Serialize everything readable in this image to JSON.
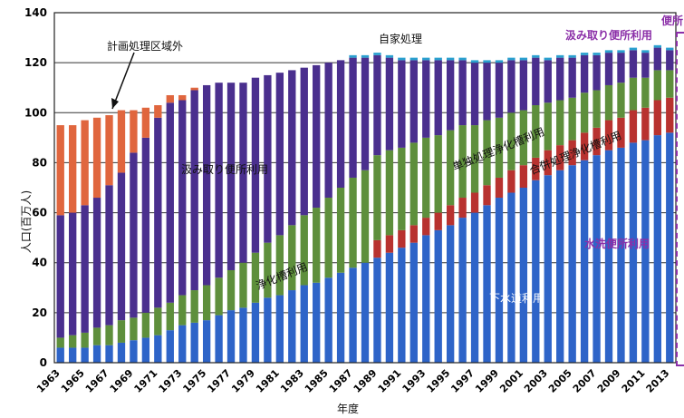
{
  "chart_data": {
    "type": "bar",
    "stacked": true,
    "title": "",
    "xlabel": "年度",
    "ylabel": "人口(百万人)",
    "ylim": [
      0,
      140
    ],
    "yticks": [
      0,
      20,
      40,
      60,
      80,
      100,
      120,
      140
    ],
    "grid": true,
    "categories": [
      "1963",
      "1964",
      "1965",
      "1966",
      "1967",
      "1968",
      "1969",
      "1970",
      "1971",
      "1972",
      "1973",
      "1974",
      "1975",
      "1976",
      "1977",
      "1978",
      "1979",
      "1980",
      "1981",
      "1982",
      "1983",
      "1984",
      "1985",
      "1986",
      "1987",
      "1988",
      "1989",
      "1990",
      "1991",
      "1992",
      "1993",
      "1994",
      "1995",
      "1996",
      "1997",
      "1998",
      "1999",
      "2000",
      "2001",
      "2002",
      "2003",
      "2004",
      "2005",
      "2006",
      "2007",
      "2008",
      "2009",
      "2010",
      "2011",
      "2012",
      "2013"
    ],
    "tick_labels": [
      "1963",
      "1965",
      "1967",
      "1969",
      "1971",
      "1973",
      "1975",
      "1977",
      "1979",
      "1981",
      "1983",
      "1985",
      "1987",
      "1989",
      "1991",
      "1993",
      "1995",
      "1997",
      "1999",
      "2001",
      "2003",
      "2005",
      "2007",
      "2009",
      "2011",
      "2013"
    ],
    "colors": {
      "sewer": "#2e64c8",
      "combined": "#b8322f",
      "single": "#5e8f3c",
      "collection": "#4a2f8e",
      "unplanned": "#e0663e",
      "self": "#2aa0cf"
    },
    "series": [
      {
        "name": "下水道利用",
        "key": "sewer",
        "values": [
          6,
          6,
          6,
          7,
          7,
          8,
          9,
          10,
          11,
          13,
          15,
          16,
          17,
          19,
          21,
          22,
          24,
          26,
          27,
          29,
          31,
          32,
          34,
          36,
          38,
          40,
          42,
          44,
          46,
          48,
          51,
          53,
          55,
          58,
          60,
          63,
          66,
          68,
          70,
          73,
          75,
          77,
          79,
          81,
          83,
          85,
          86,
          88,
          89,
          91,
          92
        ]
      },
      {
        "name": "合併処理浄化槽利用",
        "key": "combined",
        "values": [
          0,
          0,
          0,
          0,
          0,
          0,
          0,
          0,
          0,
          0,
          0,
          0,
          0,
          0,
          0,
          0,
          0,
          0,
          0,
          0,
          0,
          0,
          0,
          0,
          0,
          0,
          7,
          7,
          7,
          7,
          7,
          7,
          8,
          8,
          8,
          8,
          8,
          9,
          9,
          9,
          10,
          10,
          10,
          11,
          11,
          12,
          12,
          13,
          13,
          14,
          14
        ]
      },
      {
        "name": "単独処理浄化槽利用",
        "key": "single",
        "values": [
          4,
          5,
          6,
          7,
          8,
          9,
          9,
          10,
          11,
          11,
          12,
          13,
          14,
          15,
          16,
          18,
          20,
          22,
          24,
          26,
          28,
          30,
          32,
          34,
          36,
          37,
          34,
          34,
          33,
          33,
          32,
          31,
          30,
          29,
          27,
          26,
          24,
          23,
          22,
          21,
          19,
          18,
          17,
          16,
          15,
          14,
          14,
          13,
          12,
          12,
          11
        ]
      },
      {
        "name": "汲み取り便所利用",
        "key": "collection",
        "values": [
          49,
          49,
          51,
          52,
          56,
          59,
          66,
          70,
          76,
          80,
          78,
          80,
          80,
          78,
          75,
          72,
          70,
          67,
          65,
          62,
          59,
          57,
          54,
          51,
          48,
          45,
          40,
          37,
          35,
          33,
          31,
          30,
          28,
          26,
          25,
          23,
          22,
          21,
          20,
          19,
          17,
          17,
          16,
          15,
          14,
          13,
          12,
          11,
          10,
          9,
          8
        ]
      },
      {
        "name": "計画処理区域外",
        "key": "unplanned",
        "values": [
          36,
          35,
          34,
          32,
          28,
          25,
          17,
          12,
          5,
          3,
          2,
          1,
          0,
          0,
          0,
          0,
          0,
          0,
          0,
          0,
          0,
          0,
          0,
          0,
          0,
          0,
          0,
          0,
          0,
          0,
          0,
          0,
          0,
          0,
          0,
          0,
          0,
          0,
          0,
          0,
          0,
          0,
          0,
          0,
          0,
          0,
          0,
          0,
          0,
          0,
          0
        ]
      },
      {
        "name": "自家処理",
        "key": "self",
        "values": [
          0,
          0,
          0,
          0,
          0,
          0,
          0,
          0,
          0,
          0,
          0,
          0,
          0,
          0,
          0,
          0,
          0,
          0,
          0,
          0,
          0,
          0,
          0,
          0,
          1,
          1,
          1,
          1,
          1,
          1,
          1,
          1,
          1,
          1,
          1,
          1,
          1,
          1,
          1,
          1,
          1,
          1,
          1,
          1,
          1,
          1,
          1,
          1,
          1,
          1,
          1
        ]
      }
    ],
    "annotations": [
      "計画処理区域外",
      "自家処理",
      "汲み取り便所利用",
      "単独処理浄化槽利用",
      "合併処理浄化槽利用",
      "浄化槽利用",
      "下水道利用",
      "汲み取り便所利用",
      "水洗便所利用",
      "便所"
    ]
  }
}
